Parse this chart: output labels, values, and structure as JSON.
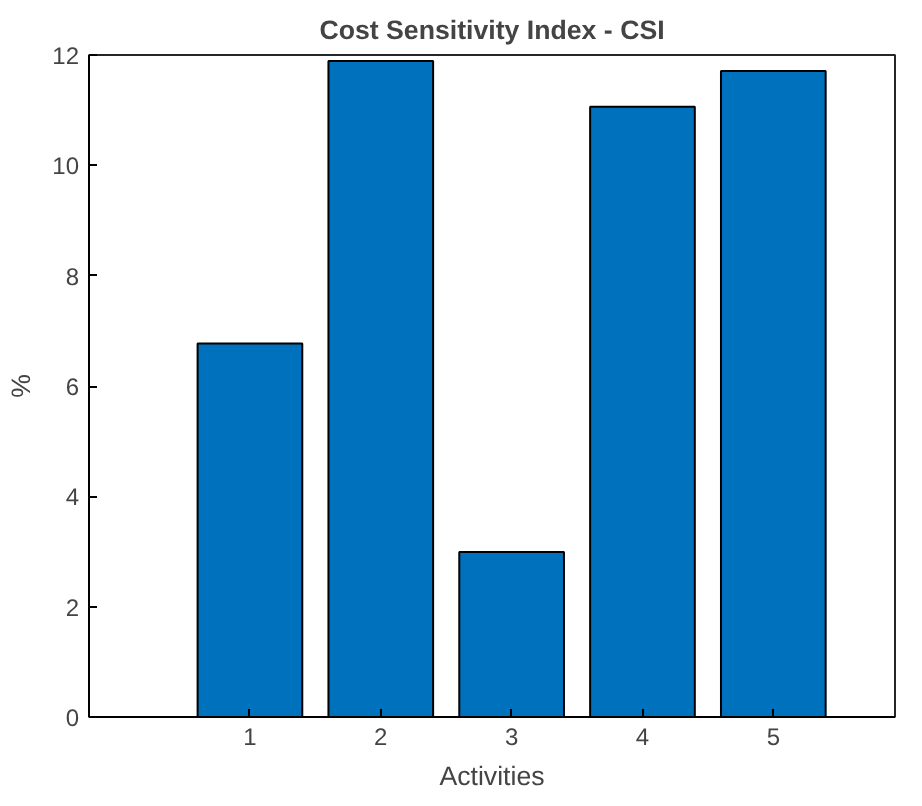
{
  "chart_data": {
    "type": "bar",
    "title": "Cost Sensitivity Index - CSI",
    "xlabel": "Activities",
    "ylabel": "%",
    "x": [
      1,
      2,
      3,
      4,
      5
    ],
    "values": [
      6.77,
      11.89,
      2.99,
      11.06,
      11.71
    ],
    "color": "#0072bd",
    "xlim": [
      -0.23,
      5.93
    ],
    "xticks": [
      1,
      2,
      3,
      4,
      5
    ],
    "ylim": [
      0,
      12
    ],
    "yticks": [
      0,
      2,
      4,
      6,
      8,
      10,
      12
    ],
    "grid": false
  }
}
